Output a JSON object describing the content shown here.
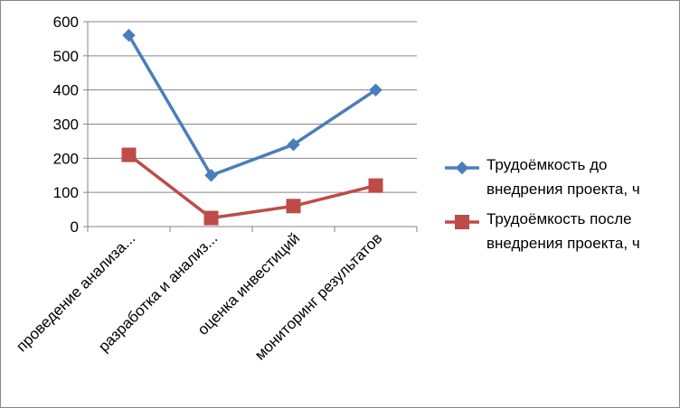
{
  "chart_data": {
    "type": "line",
    "categories": [
      "проведение анализа...",
      "разработка и анализ...",
      "оценка инвестиций",
      "мониторинг результатов"
    ],
    "series": [
      {
        "name_lines": [
          "Трудоёмкость до",
          "внедрения проекта, ч"
        ],
        "values": [
          560,
          150,
          240,
          400
        ],
        "color": "#4a7ebb",
        "marker": "diamond"
      },
      {
        "name_lines": [
          "Трудоёмкость после",
          "внедрения проекта, ч"
        ],
        "values": [
          210,
          25,
          60,
          120
        ],
        "color": "#be4b48",
        "marker": "square"
      }
    ],
    "yticks": [
      "0",
      "100",
      "200",
      "300",
      "400",
      "500",
      "600"
    ],
    "ylim": [
      0,
      600
    ],
    "grid": true,
    "legend": "right"
  }
}
